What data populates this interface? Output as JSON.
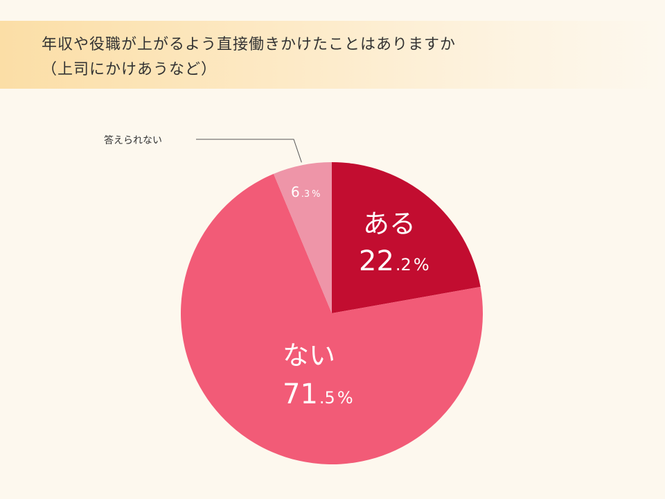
{
  "title": {
    "line1": "年収や役職が上がるよう直接働きかけたことはありますか",
    "line2": "（上司にかけあうなど）"
  },
  "colors": {
    "background": "#fdf8ee",
    "title_band": "#fbdea6",
    "aru": "#c20d30",
    "nai": "#f25b77",
    "kotaerarenai": "#ee95a8"
  },
  "chart_data": {
    "type": "pie",
    "start": "12 o'clock, clockwise",
    "slices": [
      {
        "label": "ある",
        "value": 22.2,
        "display_int": "22",
        "display_dec": ".2",
        "unit": "%",
        "color": "#c20d30"
      },
      {
        "label": "ない",
        "value": 71.5,
        "display_int": "71",
        "display_dec": ".5",
        "unit": "%",
        "color": "#f25b77"
      },
      {
        "label": "答えられない",
        "value": 6.3,
        "display_int": "6",
        "display_dec": ".3",
        "unit": "%",
        "color": "#ee95a8"
      }
    ]
  }
}
